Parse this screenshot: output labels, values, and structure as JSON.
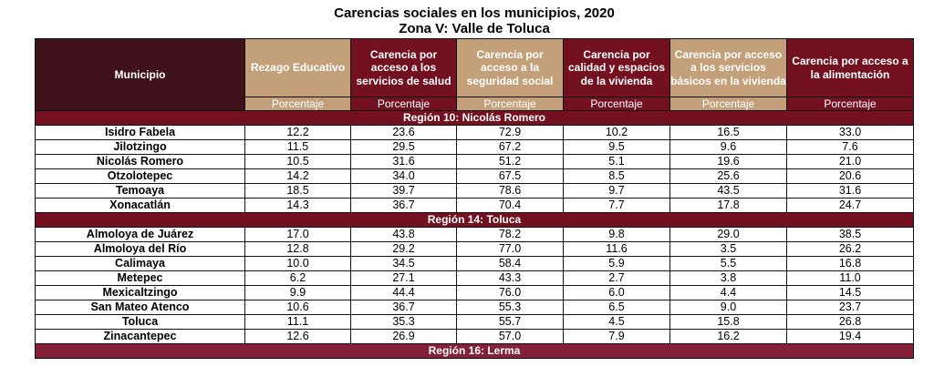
{
  "title": "Carencias sociales en los municipios, 2020",
  "subtitle": "Zona V: Valle de Toluca",
  "columns": [
    {
      "label": "Municipio",
      "unit": ""
    },
    {
      "label": "Rezago Educativo",
      "unit": "Porcentaje",
      "color": "tan"
    },
    {
      "label": "Carencia por acceso a los servicios de salud",
      "unit": "Porcentaje",
      "color": "mar"
    },
    {
      "label": "Carencia por acceso a la seguridad social",
      "unit": "Porcentaje",
      "color": "tan"
    },
    {
      "label": "Carencia por calidad y espacios de la vivienda",
      "unit": "Porcentaje",
      "color": "mar"
    },
    {
      "label": "Carencia por acceso a los servicios básicos en la vivienda",
      "unit": "Porcentaje",
      "color": "tan"
    },
    {
      "label": "Carencia por acceso a la alimentación",
      "unit": "Porcentaje",
      "color": "mar"
    }
  ],
  "regions": [
    {
      "name": "Región 10: Nicolás Romero",
      "rows": [
        [
          "Isidro Fabela",
          "12.2",
          "23.6",
          "72.9",
          "10.2",
          "16.5",
          "33.0"
        ],
        [
          "Jilotzingo",
          "11.5",
          "29.5",
          "67.2",
          "9.5",
          "9.6",
          "7.6"
        ],
        [
          "Nicolás Romero",
          "10.5",
          "31.6",
          "51.2",
          "5.1",
          "19.6",
          "21.0"
        ],
        [
          "Otzolotepec",
          "14.2",
          "34.0",
          "67.5",
          "8.5",
          "25.6",
          "20.6"
        ],
        [
          "Temoaya",
          "18.5",
          "39.7",
          "78.6",
          "9.7",
          "43.5",
          "31.6"
        ],
        [
          "Xonacatlán",
          "14.3",
          "36.7",
          "70.4",
          "7.7",
          "17.8",
          "24.7"
        ]
      ]
    },
    {
      "name": "Región 14: Toluca",
      "rows": [
        [
          "Almoloya de Juárez",
          "17.0",
          "43.8",
          "78.2",
          "9.8",
          "29.0",
          "38.5"
        ],
        [
          "Almoloya del Río",
          "12.8",
          "29.2",
          "77.0",
          "11.6",
          "3.5",
          "26.2"
        ],
        [
          "Calimaya",
          "10.0",
          "34.5",
          "58.4",
          "5.9",
          "5.5",
          "16.8"
        ],
        [
          "Metepec",
          "6.2",
          "27.1",
          "43.3",
          "2.7",
          "3.8",
          "11.0"
        ],
        [
          "Mexicaltzingo",
          "9.9",
          "44.4",
          "76.0",
          "6.0",
          "4.4",
          "14.5"
        ],
        [
          "San Mateo Atenco",
          "10.6",
          "36.7",
          "55.3",
          "6.5",
          "9.0",
          "23.7"
        ],
        [
          "Toluca",
          "11.1",
          "35.3",
          "55.7",
          "4.5",
          "15.8",
          "26.8"
        ],
        [
          "Zinacantepec",
          "12.6",
          "26.9",
          "57.0",
          "7.9",
          "16.2",
          "19.4"
        ]
      ]
    },
    {
      "name": "Región 16: Lerma",
      "rows": []
    }
  ]
}
